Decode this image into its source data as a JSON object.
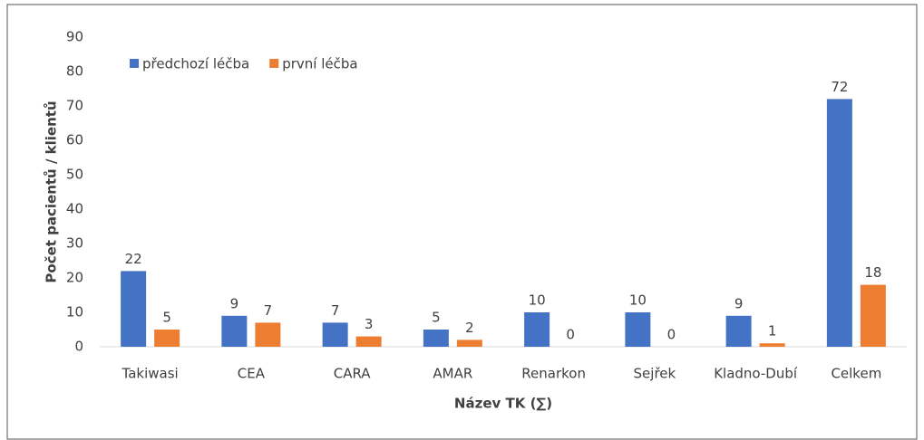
{
  "chart_data": {
    "type": "bar",
    "categories": [
      "Takiwasi",
      "CEA",
      "CARA",
      "AMAR",
      "Renarkon",
      "Sejřek",
      "Kladno-Dubí",
      "Celkem"
    ],
    "series": [
      {
        "name": "předchozí léčba",
        "color": "#4472c4",
        "values": [
          22,
          9,
          7,
          5,
          10,
          10,
          9,
          72
        ]
      },
      {
        "name": "první léčba",
        "color": "#ed7d31",
        "values": [
          5,
          7,
          3,
          2,
          0,
          0,
          1,
          18
        ]
      }
    ],
    "ylabel": "Počet pacientů / klientů",
    "xlabel": "Název TK (∑)",
    "ylim": [
      0,
      90
    ],
    "yticks": [
      0,
      10,
      20,
      30,
      40,
      50,
      60,
      70,
      80,
      90
    ],
    "grid": false,
    "legend": "top-left",
    "data_labels": true
  }
}
